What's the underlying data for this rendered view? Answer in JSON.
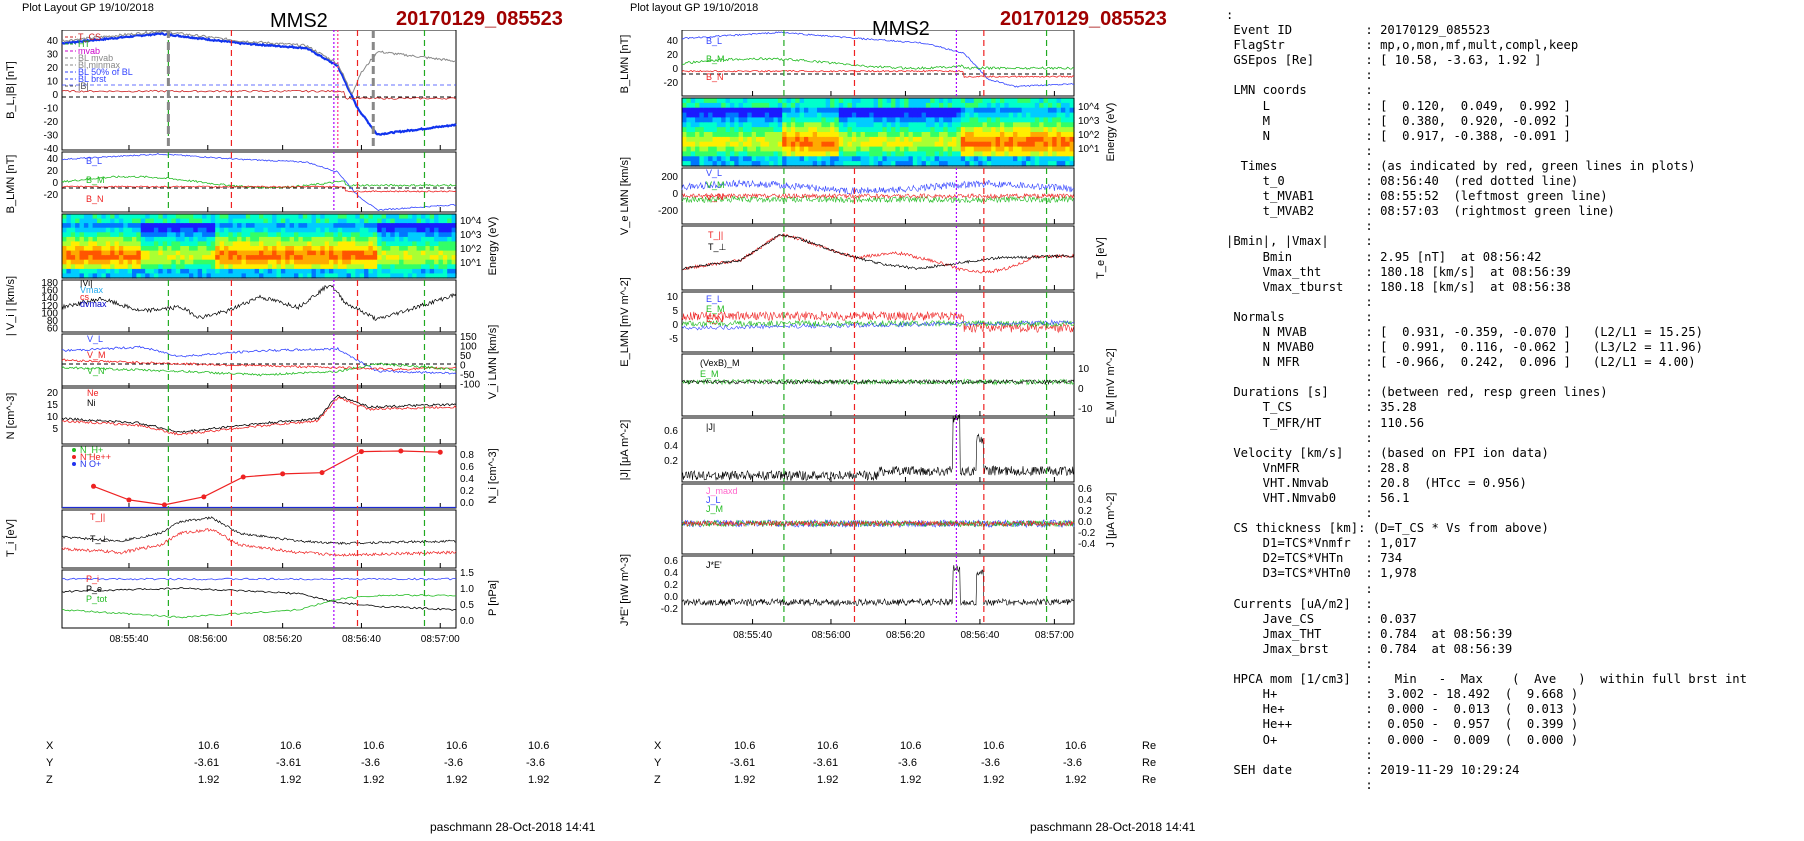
{
  "left": {
    "layout": "Plot Layout GP 19/10/2018",
    "spacecraft": "MMS2",
    "event": "20170129_085523",
    "footer": "paschmann 28-Oct-2018 14:41",
    "times": [
      "08:55:40",
      "08:56:00",
      "08:56:20",
      "08:56:40",
      "08:57:00"
    ],
    "eph": {
      "X": [
        "10.6",
        "10.6",
        "10.6",
        "10.6",
        "10.6"
      ],
      "Y": [
        "-3.61",
        "-3.61",
        "-3.6",
        "-3.6",
        "-3.6"
      ],
      "Z": [
        "1.92",
        "1.92",
        "1.92",
        "1.92",
        "1.92"
      ],
      "unit": "Re"
    },
    "panels": [
      {
        "ylabel": "B_L,|B| [nT]",
        "ticks": [
          "40",
          "30",
          "20",
          "10",
          "0",
          "-10",
          "-20",
          "-30",
          "-40"
        ],
        "legend": [
          "T_CS",
          "HT",
          "mvab",
          "BL mvab",
          "Bl,minmax",
          "BL 50% of BL",
          "BL brst",
          "|B|"
        ]
      },
      {
        "ylabel": "B_LMN [nT]",
        "ticks": [
          "40",
          "20",
          "0",
          "-20"
        ],
        "labels": [
          "B_L",
          "B_M",
          "B_N"
        ]
      },
      {
        "ylabel": "",
        "right": "Energy (eV)",
        "ticks": [
          "10^4",
          "10^3",
          "10^2",
          "10^1"
        ]
      },
      {
        "ylabel": "| V_i | [km/s]",
        "ticks": [
          "180",
          "160",
          "140",
          "120",
          "100",
          "80",
          "60"
        ],
        "legend": [
          "|Vi|",
          "Vmax",
          "cs",
          "dvmax"
        ]
      },
      {
        "ylabel": "V_i LMN [km/s]",
        "ticks": [
          "150",
          "100",
          "50",
          "0",
          "-50",
          "-100"
        ],
        "labels": [
          "V_L",
          "V_M",
          "V_N"
        ]
      },
      {
        "ylabel": "N [cm^-3]",
        "ticks": [
          "20",
          "15",
          "10",
          "5"
        ],
        "labels": [
          "Ne",
          "Ni"
        ]
      },
      {
        "ylabel": "N_i [cm^-3]",
        "ticks": [
          "0.8",
          "0.6",
          "0.4",
          "0.2",
          "0.0"
        ],
        "legend": [
          "N_H+",
          "N He++",
          "N O+"
        ]
      },
      {
        "ylabel": "T_i [eV]",
        "ticks": [],
        "labels": [
          "T_||",
          "T_⊥"
        ]
      },
      {
        "ylabel": "P [nPa]",
        "ticks": [
          "1.5",
          "1.0",
          "0.5",
          "0.0"
        ],
        "labels": [
          "P_i",
          "P_e",
          "P_tot"
        ]
      }
    ]
  },
  "middle": {
    "layout": "Plot layout GP 19/10/2018",
    "spacecraft": "MMS2",
    "event": "20170129_085523",
    "footer": "paschmann 28-Oct-2018 14:41",
    "times": [
      "08:55:40",
      "08:56:00",
      "08:56:20",
      "08:56:40",
      "08:57:00"
    ],
    "eph": {
      "X": [
        "10.6",
        "10.6",
        "10.6",
        "10.6",
        "10.6"
      ],
      "Y": [
        "-3.61",
        "-3.61",
        "-3.6",
        "-3.6",
        "-3.6"
      ],
      "Z": [
        "1.92",
        "1.92",
        "1.92",
        "1.92",
        "1.92"
      ],
      "unit": "Re"
    },
    "panels": [
      {
        "ylabel": "B_LMN [nT]",
        "ticks": [
          "40",
          "20",
          "0",
          "-20"
        ],
        "labels": [
          "B_L",
          "B_M",
          "B_N"
        ]
      },
      {
        "ylabel": "",
        "right": "Energy (eV)",
        "ticks": [
          "10^4",
          "10^3",
          "10^2",
          "10^1"
        ]
      },
      {
        "ylabel": "V_e LMN [km/s]",
        "ticks": [
          "200",
          "0",
          "-200"
        ],
        "labels": [
          "V_L",
          "V_M",
          "V_N"
        ]
      },
      {
        "ylabel": "",
        "right": "T_e [eV]",
        "labels": [
          "T_||",
          "T_⊥"
        ]
      },
      {
        "ylabel": "E_LMN [mV m^-2]",
        "ticks": [
          "10",
          "5",
          "0",
          "-5"
        ],
        "labels": [
          "E_L",
          "E_M",
          "E_N"
        ]
      },
      {
        "ylabel": "",
        "right": "E_M [mV m^-2]",
        "ticks": [
          "10",
          "0",
          "-10"
        ],
        "labels": [
          "(VexB)_M",
          "E_M"
        ]
      },
      {
        "ylabel": "|J| [μA m^-2]",
        "ticks": [
          "0.6",
          "0.4",
          "0.2"
        ],
        "labels": [
          "|J|"
        ]
      },
      {
        "ylabel": "",
        "right": "J [μA m^-2]",
        "ticks": [
          "0.6",
          "0.4",
          "0.2",
          "0.0",
          "-0.2",
          "-0.4"
        ],
        "labels": [
          "J_maxd",
          "J_L",
          "J_M"
        ]
      },
      {
        "ylabel": "J*E' [nW m^-3]",
        "ticks": [
          "0.6",
          "0.4",
          "0.2",
          "0.0",
          "-0.2"
        ],
        "labels": [
          "J*E'"
        ]
      }
    ]
  },
  "info": [
    ":",
    " Event ID          : 20170129_085523",
    " FlagStr           : mp,o,mon,mf,mult,compl,keep",
    " GSEpos [Re]       : [ 10.58, -3.63, 1.92 ]",
    "                   :",
    " LMN coords        :",
    "     L             : [  0.120,  0.049,  0.992 ]",
    "     M             : [  0.380,  0.920, -0.092 ]",
    "     N             : [  0.917, -0.388, -0.091 ]",
    "                   :",
    "  Times            : (as indicated by red, green lines in plots)",
    "     t_0           : 08:56:40  (red dotted line)",
    "     t_MVAB1       : 08:55:52  (leftmost green line)",
    "     t_MVAB2       : 08:57:03  (rightmost green line)",
    "                   :",
    "|Bmin|, |Vmax|     :",
    "     Bmin          : 2.95 [nT]  at 08:56:42",
    "     Vmax_tht      : 180.18 [km/s]  at 08:56:39",
    "     Vmax_tburst   : 180.18 [km/s]  at 08:56:38",
    "                   :",
    " Normals           :",
    "     N MVAB        : [  0.931, -0.359, -0.070 ]   (L2/L1 = 15.25)",
    "     N MVAB0       : [  0.991,  0.116, -0.062 ]   (L3/L2 = 11.96)",
    "     N MFR         : [ -0.966,  0.242,  0.096 ]   (L2/L1 = 4.00)",
    "                   :",
    " Durations [s]     : (between red, resp green lines)",
    "     T_CS          : 35.28",
    "     T_MFR/HT      : 110.56",
    "                   :",
    " Velocity [km/s]   : (based on FPI ion data)",
    "     VnMFR         : 28.8",
    "     VHT.Nmvab     : 20.8  (HTcc = 0.956)",
    "     VHT.Nmvab0    : 56.1",
    "                   :",
    " CS thickness [km]: (D=T_CS * Vs from above)",
    "     D1=TCS*Vnmfr  : 1,017",
    "     D2=TCS*VHTn   : 734",
    "     D3=TCS*VHTn0  : 1,978",
    "                   :",
    " Currents [uA/m2]  :",
    "     Jave_CS       : 0.037",
    "     Jmax_THT      : 0.784  at 08:56:39",
    "     Jmax_brst     : 0.784  at 08:56:39",
    "                   :",
    " HPCA mom [1/cm3]  :   Min   -  Max    (  Ave   )  within full brst int",
    "     H+            :  3.002 - 18.492  (  9.668 )",
    "     He+           :  0.000 -  0.013  (  0.013 )",
    "     He++          :  0.050 -  0.957  (  0.399 )",
    "     O+            :  0.000 -  0.009  (  0.000 )",
    "                   :",
    " SEH date          : 2019-11-29 10:29:24",
    "                   :"
  ],
  "chart_data": [
    {
      "type": "line",
      "title": "MMS2 20170129_085523 (left layout)",
      "x_times": [
        "08:55:40",
        "08:56:00",
        "08:56:20",
        "08:56:40",
        "08:57:00"
      ],
      "series": [
        {
          "name": "B_L",
          "approx": [
            [
              0,
              44
            ],
            [
              0.25,
              52
            ],
            [
              0.45,
              44
            ],
            [
              0.62,
              40
            ],
            [
              0.7,
              25
            ],
            [
              0.75,
              -10
            ],
            [
              0.8,
              -32
            ],
            [
              1,
              -24
            ]
          ]
        },
        {
          "name": "N_i He++",
          "approx": [
            [
              0.08,
              0.35
            ],
            [
              0.17,
              0.13
            ],
            [
              0.26,
              0.05
            ],
            [
              0.36,
              0.18
            ],
            [
              0.46,
              0.5
            ],
            [
              0.56,
              0.55
            ],
            [
              0.66,
              0.57
            ],
            [
              0.76,
              0.91
            ],
            [
              0.86,
              0.92
            ],
            [
              0.96,
              0.9
            ]
          ]
        }
      ],
      "markers": {
        "red_dashed": [
          "08:56:10",
          "08:56:46"
        ],
        "green_dashed": [
          "08:55:52",
          "08:57:03"
        ],
        "purple_dotted": "08:56:40"
      }
    },
    {
      "type": "line",
      "title": "MMS2 20170129_085523 (right layout)",
      "x_times": [
        "08:55:40",
        "08:56:00",
        "08:56:20",
        "08:56:40",
        "08:57:00"
      ],
      "series": [
        {
          "name": "|J|",
          "peak": 0.78,
          "peak_time": "08:56:39"
        }
      ]
    }
  ]
}
